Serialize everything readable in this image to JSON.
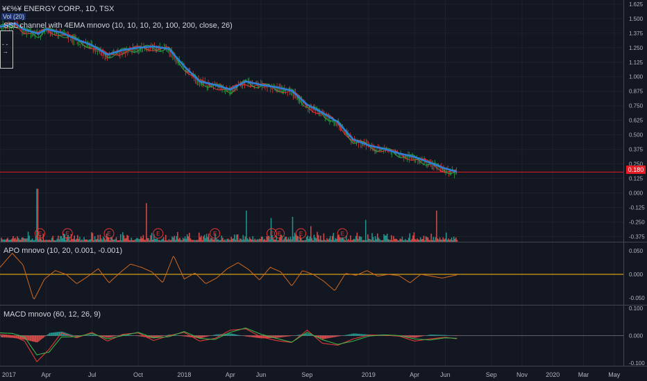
{
  "header": {
    "symbol_title": "¥€%¥ ENERGY CORP., 1D, TSX",
    "symbol_badge": "20",
    "volume_label": "Vol (20)",
    "ssl_label": "SSL channel with 4EMA mnovo (10, 10, 10, 20, 100, 200, close, 26)",
    "box_arrow": "- - →",
    "price_tag": "0.180"
  },
  "panes": {
    "apo_label": "APO mnovo (10, 20, 0.001, -0.001)",
    "macd_label": "MACD mnovo (60, 12, 26, 9)"
  },
  "colors": {
    "background": "#131722",
    "grid": "#1e222d",
    "ssl_line": "#2f7ed8",
    "ema_fast": "#e53935",
    "ema_green": "#26a641",
    "volume_up": "#26a69a",
    "volume_down": "#ef5350",
    "apo_line": "#d2691e",
    "zero_line": "#d4a017",
    "price_line": "#e51c23",
    "macd_line": "#e53935",
    "signal_line": "#3cb44b"
  },
  "chart_data": [
    {
      "type": "line",
      "pane": "price",
      "title": "SSL channel with 4EMA mnovo (10, 10, 10, 20, 100, 200, close, 26)",
      "y_ticks": [
        "1.625",
        "1.500",
        "1.375",
        "1.250",
        "1.125",
        "1.000",
        "0.875",
        "0.750",
        "0.625",
        "0.500",
        "0.375",
        "0.250",
        "0.125",
        "0.000",
        "-0.125",
        "-0.250",
        "-0.375"
      ],
      "ylim": [
        -0.42,
        1.66
      ],
      "x_ticks": [
        "2017",
        "Apr",
        "Jul",
        "Oct",
        "2018",
        "Apr",
        "Jun",
        "Sep",
        "2019",
        "Apr",
        "Jun",
        "Sep",
        "Nov",
        "2020",
        "Mar",
        "May"
      ],
      "x_tick_months": [
        0,
        3,
        6,
        9,
        12,
        15,
        17,
        20,
        24,
        27,
        29,
        32,
        34,
        36,
        38,
        40
      ],
      "xlim_months": [
        0,
        40.6
      ],
      "last_price": 0.18,
      "series": [
        {
          "name": "",
          "x_months": [
            0,
            1,
            1.5,
            2.5,
            3,
            4,
            5,
            6,
            7,
            8,
            9,
            10,
            11,
            12,
            13,
            14,
            15,
            16,
            17,
            18,
            19,
            20,
            21,
            22,
            23,
            24,
            25,
            26,
            27,
            28,
            29,
            29.8
          ],
          "values": [
            1.42,
            1.45,
            1.4,
            1.36,
            1.4,
            1.37,
            1.31,
            1.26,
            1.18,
            1.22,
            1.24,
            1.25,
            1.23,
            1.08,
            0.95,
            0.92,
            0.88,
            0.95,
            0.92,
            0.9,
            0.87,
            0.75,
            0.68,
            0.6,
            0.45,
            0.4,
            0.37,
            0.33,
            0.3,
            0.25,
            0.2,
            0.17
          ]
        }
      ]
    },
    {
      "type": "bar",
      "pane": "volume",
      "title": "Vol (20)",
      "earnings_months": [
        2.6,
        4.4,
        7.1,
        10.3,
        14,
        17.7,
        18.2,
        19.6,
        22.3
      ],
      "earnings_mark": "E",
      "notable_spikes_months": [
        2.4,
        9.5,
        16,
        17.6,
        19,
        20.2,
        23.8,
        28.4
      ],
      "notable_spike_share": [
        0.85,
        0.62,
        0.5,
        0.38,
        0.4,
        0.25,
        0.35,
        0.5
      ]
    },
    {
      "type": "line",
      "pane": "apo",
      "title": "APO mnovo (10, 20, 0.001, -0.001)",
      "y_ticks": [
        "0.050",
        "0.000",
        "-0.050"
      ],
      "ylim": [
        -0.065,
        0.068
      ],
      "series": [
        {
          "name": "",
          "x_months": [
            0,
            0.8,
            1.5,
            2.2,
            2.9,
            3.6,
            4.3,
            5,
            5.7,
            6.4,
            7.1,
            7.8,
            8.5,
            9.2,
            9.9,
            10.6,
            11.3,
            12,
            12.7,
            13.4,
            14.1,
            14.8,
            15.5,
            16.2,
            16.9,
            17.6,
            18.3,
            19,
            19.7,
            20.4,
            21.1,
            21.8,
            22.5,
            23.2,
            23.9,
            24.6,
            25.3,
            26,
            26.7,
            27.4,
            28.1,
            28.8,
            29.8
          ],
          "values": [
            0.015,
            0.045,
            0.02,
            -0.055,
            -0.01,
            0.008,
            0.0,
            -0.02,
            -0.005,
            0.012,
            -0.018,
            0.003,
            0.022,
            0.015,
            0.005,
            -0.018,
            0.04,
            -0.01,
            0.003,
            -0.02,
            -0.008,
            0.012,
            0.025,
            0.01,
            -0.012,
            0.015,
            0.005,
            -0.025,
            0.008,
            0.0,
            -0.015,
            -0.035,
            0.002,
            -0.002,
            0.008,
            -0.004,
            0.0,
            -0.003,
            -0.018,
            0.0,
            -0.004,
            -0.008,
            -0.001
          ]
        }
      ]
    },
    {
      "type": "line",
      "pane": "macd",
      "title": "MACD mnovo (60, 12, 26, 9)",
      "y_ticks": [
        "0.100",
        "0.000",
        "-0.100"
      ],
      "ylim": [
        -0.11,
        0.11
      ],
      "series": [
        {
          "name": "",
          "x_months": [
            0,
            0.8,
            1.6,
            2.4,
            3.2,
            4,
            5,
            6,
            7,
            8,
            9,
            10,
            11,
            12,
            13,
            14,
            15,
            16,
            17,
            18,
            19,
            20,
            21,
            22,
            23,
            24,
            25,
            26,
            27,
            28,
            29,
            29.8
          ],
          "values": [
            0.004,
            0.0,
            -0.02,
            -0.095,
            -0.05,
            0.01,
            -0.008,
            0.012,
            -0.02,
            0.005,
            0.01,
            -0.018,
            0.0,
            0.012,
            -0.02,
            -0.01,
            0.02,
            0.025,
            -0.005,
            -0.018,
            -0.025,
            0.02,
            -0.028,
            -0.035,
            -0.012,
            0.002,
            0.002,
            -0.002,
            -0.02,
            -0.012,
            -0.006,
            -0.012
          ]
        },
        {
          "name": "",
          "x_months": [
            0,
            0.8,
            1.6,
            2.4,
            3.2,
            4,
            5,
            6,
            7,
            8,
            9,
            10,
            11,
            12,
            13,
            14,
            15,
            16,
            17,
            18,
            19,
            20,
            21,
            22,
            23,
            24,
            25,
            26,
            27,
            28,
            29,
            29.8
          ],
          "values": [
            0.01,
            0.008,
            -0.005,
            -0.07,
            -0.06,
            -0.005,
            -0.004,
            0.008,
            -0.012,
            0.0,
            0.012,
            -0.008,
            -0.004,
            0.015,
            -0.01,
            -0.014,
            0.012,
            0.028,
            0.005,
            -0.01,
            -0.024,
            0.012,
            -0.015,
            -0.032,
            -0.02,
            -0.002,
            0.003,
            0.0,
            -0.012,
            -0.016,
            -0.008,
            -0.01
          ]
        }
      ]
    }
  ]
}
